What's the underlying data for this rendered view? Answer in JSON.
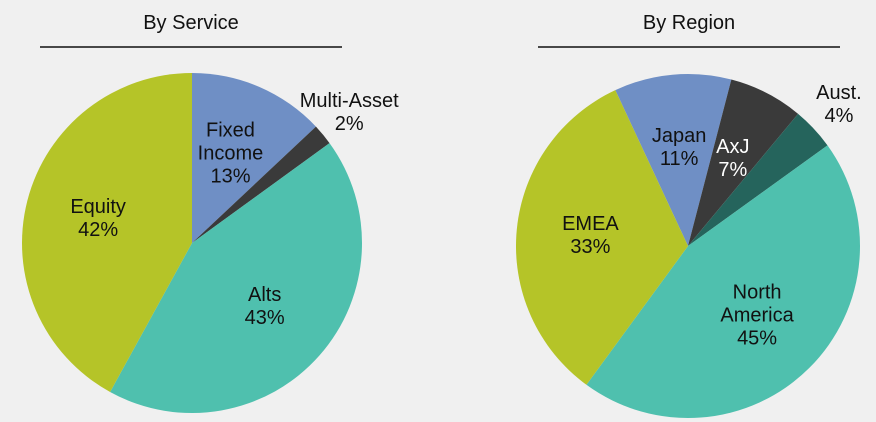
{
  "chart_data": [
    {
      "type": "pie",
      "title": "By Service",
      "categories": [
        "Fixed Income",
        "Multi-Asset",
        "Alts",
        "Equity"
      ],
      "values": [
        13,
        2,
        43,
        42
      ],
      "value_labels": [
        "13%",
        "2%",
        "43%",
        "42%"
      ],
      "colors": [
        "#6f8fc5",
        "#3a3a3a",
        "#4fc0ae",
        "#b5c428"
      ],
      "start_angle": 0
    },
    {
      "type": "pie",
      "title": "By Region",
      "categories": [
        "Japan",
        "AxJ",
        "Aust.",
        "North America",
        "EMEA"
      ],
      "values": [
        11,
        7,
        4,
        45,
        33
      ],
      "value_labels": [
        "11%",
        "7%",
        "4%",
        "45%",
        "33%"
      ],
      "colors": [
        "#6f8fc5",
        "#3a3a3a",
        "#25645c",
        "#4fc0ae",
        "#b5c428"
      ],
      "start_angle": -25
    }
  ]
}
